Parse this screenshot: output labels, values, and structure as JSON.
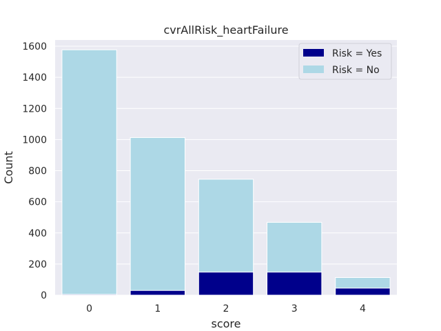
{
  "chart_data": {
    "type": "bar",
    "title": "cvrAllRisk_heartFailure",
    "xlabel": "score",
    "ylabel": "Count",
    "categories": [
      "0",
      "1",
      "2",
      "3",
      "4"
    ],
    "ylim": [
      0,
      1640
    ],
    "yticks": [
      0,
      200,
      400,
      600,
      800,
      1000,
      1200,
      1400,
      1600
    ],
    "grid": true,
    "legend_position": "top-right",
    "overlay": true,
    "series": [
      {
        "name": "Risk = No",
        "color": "#add8e6",
        "values": [
          1577,
          1013,
          745,
          468,
          113
        ]
      },
      {
        "name": "Risk = Yes",
        "color": "#00008b",
        "values": [
          5,
          30,
          148,
          148,
          45
        ]
      }
    ],
    "legend_order": [
      "Risk = Yes",
      "Risk = No"
    ],
    "background_color": "#eaeaf2"
  }
}
